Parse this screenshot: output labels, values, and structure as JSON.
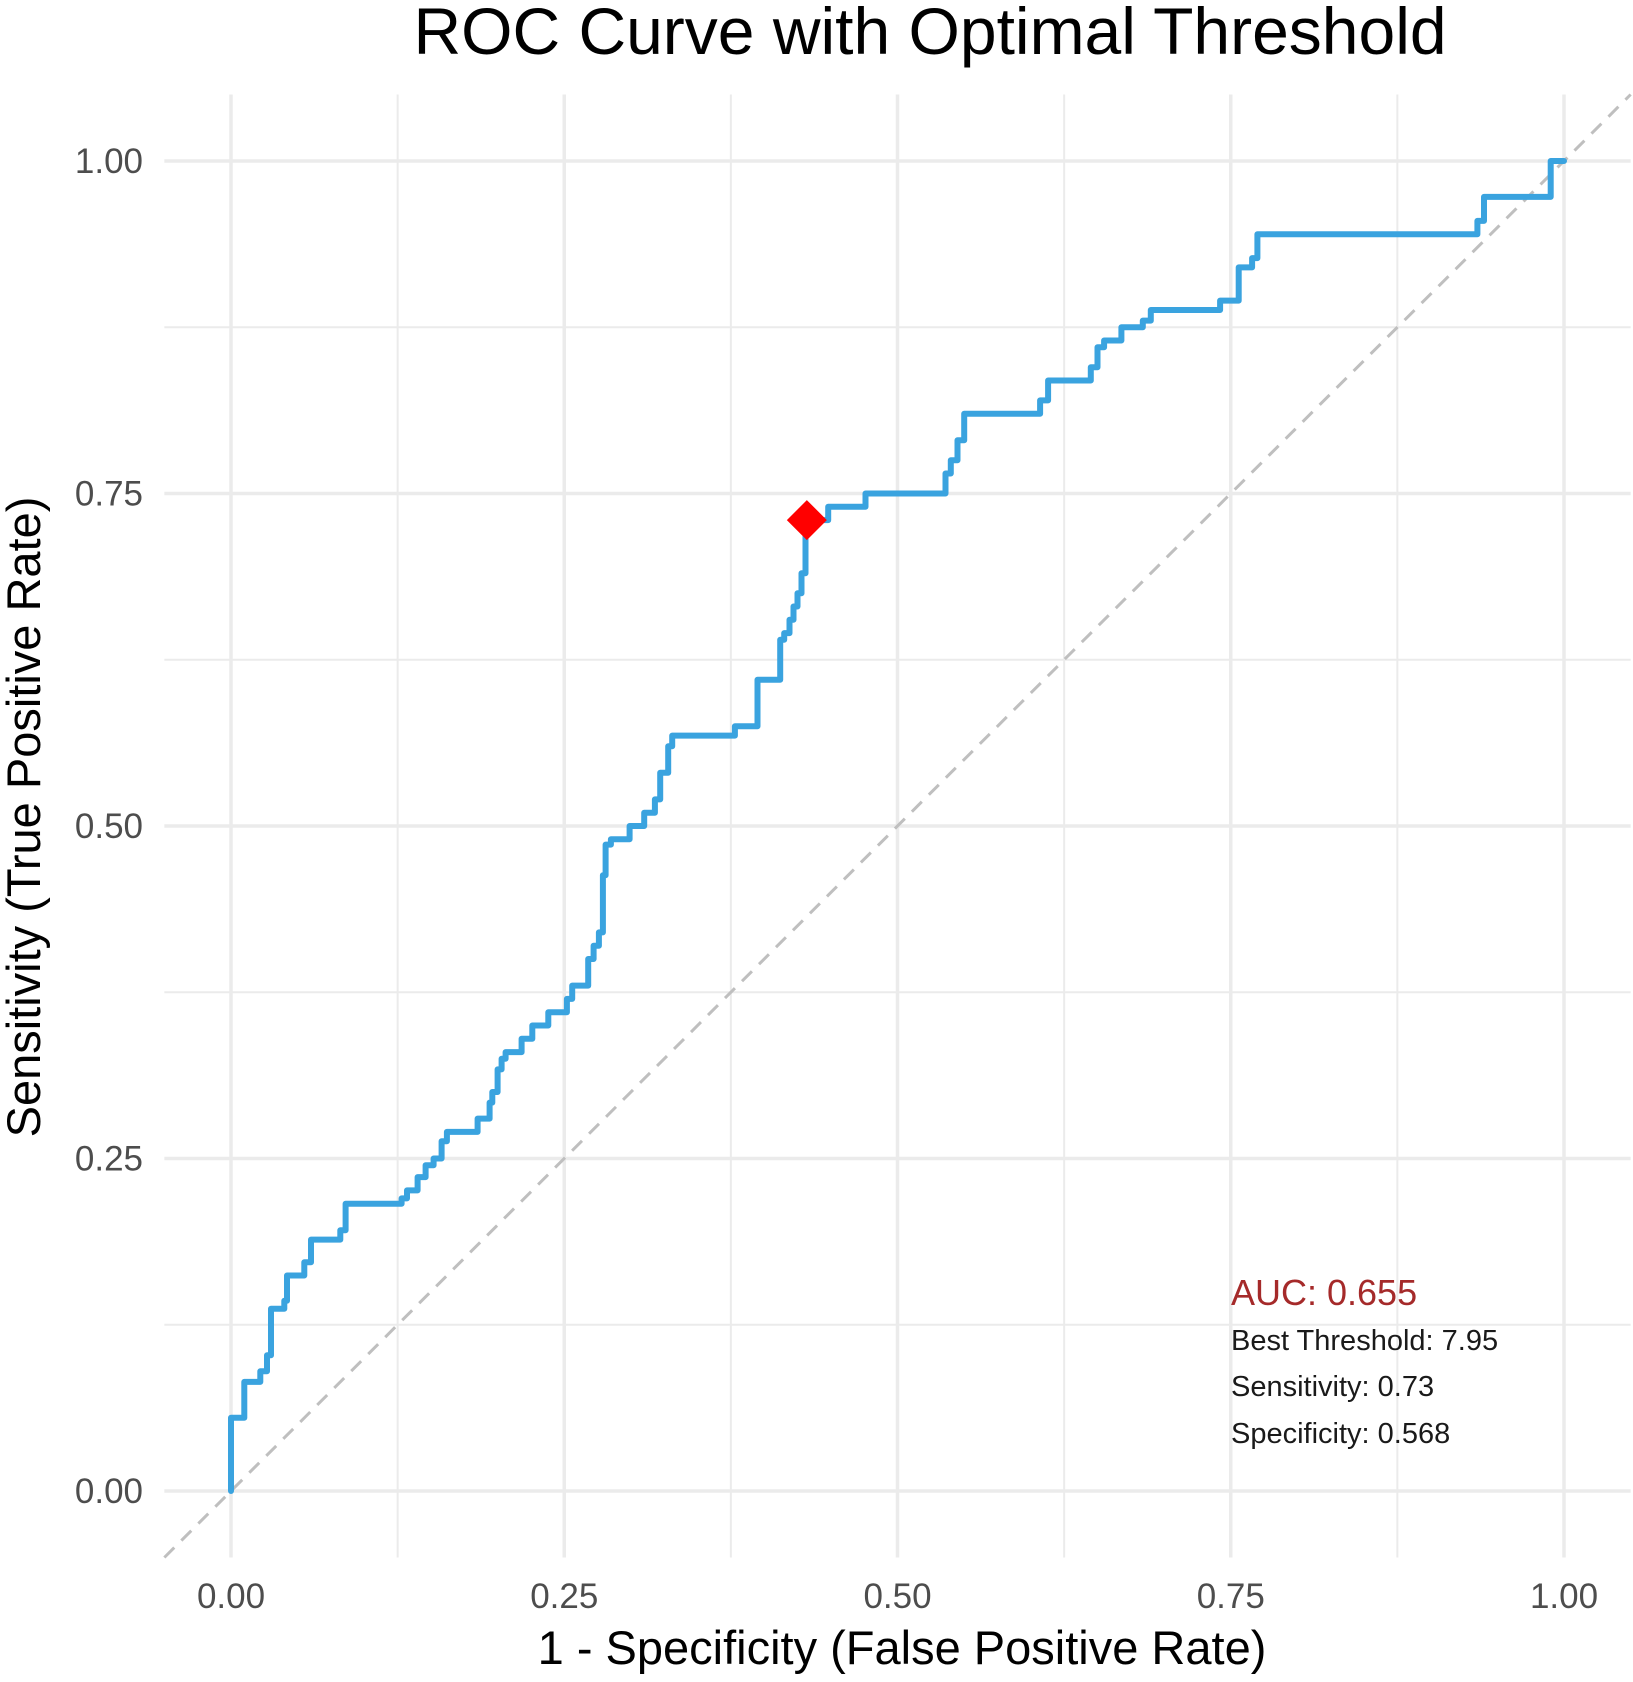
{
  "chart_data": {
    "type": "line",
    "title": "ROC Curve with Optimal Threshold",
    "xlabel": "1 - Specificity (False Positive Rate)",
    "ylabel": "Sensitivity (True Positive Rate)",
    "xlim": [
      -0.05,
      1.05
    ],
    "ylim": [
      -0.05,
      1.05
    ],
    "x_ticks": [
      0,
      0.25,
      0.5,
      0.75,
      1.0
    ],
    "y_ticks": [
      0,
      0.25,
      0.5,
      0.75,
      1.0
    ],
    "x_tick_labels": [
      "0.00",
      "0.25",
      "0.50",
      "0.75",
      "1.00"
    ],
    "y_tick_labels": [
      "0.00",
      "0.25",
      "0.50",
      "0.75",
      "1.00"
    ],
    "grid": true,
    "colors": {
      "curve": "#3aa3df",
      "diagonal": "#bfbfbf",
      "optimal_point": "#ff0000",
      "auc_text": "#a52a2a",
      "grid": "#ebebeb"
    },
    "series": [
      {
        "role": "roc-curve",
        "points": [
          [
            0.0,
            0.0
          ],
          [
            0.0,
            0.055
          ],
          [
            0.01,
            0.055
          ],
          [
            0.01,
            0.082
          ],
          [
            0.022,
            0.082
          ],
          [
            0.022,
            0.09
          ],
          [
            0.027,
            0.09
          ],
          [
            0.027,
            0.102
          ],
          [
            0.03,
            0.102
          ],
          [
            0.03,
            0.137
          ],
          [
            0.04,
            0.137
          ],
          [
            0.04,
            0.143
          ],
          [
            0.042,
            0.143
          ],
          [
            0.042,
            0.162
          ],
          [
            0.055,
            0.162
          ],
          [
            0.055,
            0.172
          ],
          [
            0.06,
            0.172
          ],
          [
            0.06,
            0.189
          ],
          [
            0.082,
            0.189
          ],
          [
            0.082,
            0.196
          ],
          [
            0.086,
            0.196
          ],
          [
            0.086,
            0.216
          ],
          [
            0.128,
            0.216
          ],
          [
            0.128,
            0.22
          ],
          [
            0.132,
            0.22
          ],
          [
            0.132,
            0.226
          ],
          [
            0.14,
            0.226
          ],
          [
            0.14,
            0.236
          ],
          [
            0.146,
            0.236
          ],
          [
            0.146,
            0.245
          ],
          [
            0.152,
            0.245
          ],
          [
            0.152,
            0.25
          ],
          [
            0.158,
            0.25
          ],
          [
            0.158,
            0.263
          ],
          [
            0.162,
            0.263
          ],
          [
            0.162,
            0.27
          ],
          [
            0.185,
            0.27
          ],
          [
            0.185,
            0.28
          ],
          [
            0.194,
            0.28
          ],
          [
            0.194,
            0.292
          ],
          [
            0.196,
            0.292
          ],
          [
            0.196,
            0.3
          ],
          [
            0.2,
            0.3
          ],
          [
            0.2,
            0.317
          ],
          [
            0.203,
            0.317
          ],
          [
            0.203,
            0.325
          ],
          [
            0.206,
            0.325
          ],
          [
            0.206,
            0.33
          ],
          [
            0.218,
            0.33
          ],
          [
            0.218,
            0.34
          ],
          [
            0.226,
            0.34
          ],
          [
            0.226,
            0.35
          ],
          [
            0.238,
            0.35
          ],
          [
            0.238,
            0.36
          ],
          [
            0.252,
            0.36
          ],
          [
            0.252,
            0.37
          ],
          [
            0.256,
            0.37
          ],
          [
            0.256,
            0.38
          ],
          [
            0.268,
            0.38
          ],
          [
            0.268,
            0.4
          ],
          [
            0.272,
            0.4
          ],
          [
            0.272,
            0.41
          ],
          [
            0.276,
            0.41
          ],
          [
            0.276,
            0.42
          ],
          [
            0.279,
            0.42
          ],
          [
            0.279,
            0.463
          ],
          [
            0.281,
            0.463
          ],
          [
            0.281,
            0.486
          ],
          [
            0.285,
            0.486
          ],
          [
            0.285,
            0.49
          ],
          [
            0.299,
            0.49
          ],
          [
            0.299,
            0.5
          ],
          [
            0.31,
            0.5
          ],
          [
            0.31,
            0.51
          ],
          [
            0.318,
            0.51
          ],
          [
            0.318,
            0.52
          ],
          [
            0.322,
            0.52
          ],
          [
            0.322,
            0.54
          ],
          [
            0.328,
            0.54
          ],
          [
            0.328,
            0.56
          ],
          [
            0.331,
            0.56
          ],
          [
            0.331,
            0.568
          ],
          [
            0.378,
            0.568
          ],
          [
            0.378,
            0.575
          ],
          [
            0.395,
            0.575
          ],
          [
            0.395,
            0.61
          ],
          [
            0.412,
            0.61
          ],
          [
            0.412,
            0.64
          ],
          [
            0.415,
            0.64
          ],
          [
            0.415,
            0.645
          ],
          [
            0.419,
            0.645
          ],
          [
            0.419,
            0.655
          ],
          [
            0.422,
            0.655
          ],
          [
            0.422,
            0.665
          ],
          [
            0.425,
            0.665
          ],
          [
            0.425,
            0.675
          ],
          [
            0.428,
            0.675
          ],
          [
            0.428,
            0.69
          ],
          [
            0.431,
            0.69
          ],
          [
            0.431,
            0.73
          ],
          [
            0.448,
            0.73
          ],
          [
            0.448,
            0.74
          ],
          [
            0.476,
            0.74
          ],
          [
            0.476,
            0.75
          ],
          [
            0.536,
            0.75
          ],
          [
            0.536,
            0.765
          ],
          [
            0.54,
            0.765
          ],
          [
            0.54,
            0.775
          ],
          [
            0.545,
            0.775
          ],
          [
            0.545,
            0.79
          ],
          [
            0.55,
            0.79
          ],
          [
            0.55,
            0.81
          ],
          [
            0.607,
            0.81
          ],
          [
            0.607,
            0.82
          ],
          [
            0.613,
            0.82
          ],
          [
            0.613,
            0.835
          ],
          [
            0.645,
            0.835
          ],
          [
            0.645,
            0.845
          ],
          [
            0.65,
            0.845
          ],
          [
            0.65,
            0.86
          ],
          [
            0.655,
            0.86
          ],
          [
            0.655,
            0.865
          ],
          [
            0.668,
            0.865
          ],
          [
            0.668,
            0.875
          ],
          [
            0.684,
            0.875
          ],
          [
            0.684,
            0.88
          ],
          [
            0.69,
            0.88
          ],
          [
            0.69,
            0.888
          ],
          [
            0.742,
            0.888
          ],
          [
            0.742,
            0.895
          ],
          [
            0.756,
            0.895
          ],
          [
            0.756,
            0.92
          ],
          [
            0.766,
            0.92
          ],
          [
            0.766,
            0.927
          ],
          [
            0.77,
            0.927
          ],
          [
            0.77,
            0.945
          ],
          [
            0.935,
            0.945
          ],
          [
            0.935,
            0.955
          ],
          [
            0.94,
            0.955
          ],
          [
            0.94,
            0.973
          ],
          [
            0.99,
            0.973
          ],
          [
            0.99,
            1.0
          ],
          [
            1.0,
            1.0
          ]
        ]
      },
      {
        "role": "diagonal-reference",
        "points": [
          [
            -0.05,
            -0.05
          ],
          [
            1.05,
            1.05
          ]
        ]
      }
    ],
    "optimal_point": {
      "x": 0.432,
      "y": 0.73,
      "marker": "diamond"
    }
  },
  "annotations": {
    "auc": "AUC: 0.655",
    "best_threshold": "Best Threshold: 7.95",
    "sensitivity": "Sensitivity: 0.73",
    "specificity": "Specificity: 0.568"
  }
}
